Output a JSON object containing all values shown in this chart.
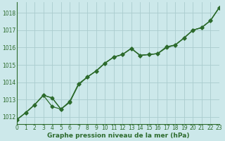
{
  "bg_color": "#cce8ea",
  "grid_color": "#aaccce",
  "line_color": "#2d6b2d",
  "xlabel": "Graphe pression niveau de la mer (hPa)",
  "xlabel_fontsize": 6.5,
  "ylabel_values": [
    1012,
    1013,
    1014,
    1015,
    1016,
    1017,
    1018
  ],
  "xlim": [
    0,
    23
  ],
  "ylim": [
    1011.6,
    1018.6
  ],
  "tick_fontsize": 5.5,
  "line1_x": [
    0,
    1,
    2,
    3,
    4,
    5,
    6,
    7,
    8,
    9,
    10,
    11,
    12,
    13,
    14,
    15,
    16,
    17,
    18,
    19,
    20,
    21,
    22,
    23
  ],
  "line1_y": [
    1011.85,
    1012.25,
    1012.7,
    1013.25,
    1013.1,
    1012.45,
    1012.85,
    1013.9,
    1014.3,
    1014.65,
    1015.1,
    1015.45,
    1015.6,
    1015.95,
    1015.55,
    1015.6,
    1015.65,
    1016.0,
    1016.15,
    1016.55,
    1017.0,
    1017.15,
    1017.55,
    1018.3
  ],
  "line2_x": [
    0,
    1,
    2,
    3,
    4,
    5,
    6,
    7,
    8,
    9,
    10,
    11,
    12,
    13,
    14,
    15,
    16,
    17,
    18,
    19,
    20,
    21,
    22,
    23
  ],
  "line2_y": [
    1011.85,
    1012.25,
    1012.7,
    1013.25,
    1012.6,
    1012.45,
    1012.9,
    1013.9,
    1014.3,
    1014.65,
    1015.1,
    1015.45,
    1015.6,
    1015.95,
    1015.55,
    1015.6,
    1015.65,
    1016.05,
    1016.15,
    1016.55,
    1017.0,
    1017.15,
    1017.55,
    1018.3
  ],
  "line3_x": [
    0,
    1,
    2,
    3,
    4,
    5,
    6,
    7,
    8,
    9,
    10,
    11,
    12,
    13,
    14,
    15,
    16,
    17,
    18,
    19,
    20,
    21,
    22,
    23
  ],
  "line3_y": [
    1011.85,
    1012.25,
    1012.7,
    1013.25,
    1013.1,
    1012.45,
    1012.85,
    1013.85,
    1014.3,
    1014.65,
    1015.1,
    1015.45,
    1015.6,
    1015.95,
    1015.55,
    1015.6,
    1015.65,
    1016.0,
    1016.15,
    1016.55,
    1017.0,
    1017.15,
    1017.55,
    1018.3
  ]
}
